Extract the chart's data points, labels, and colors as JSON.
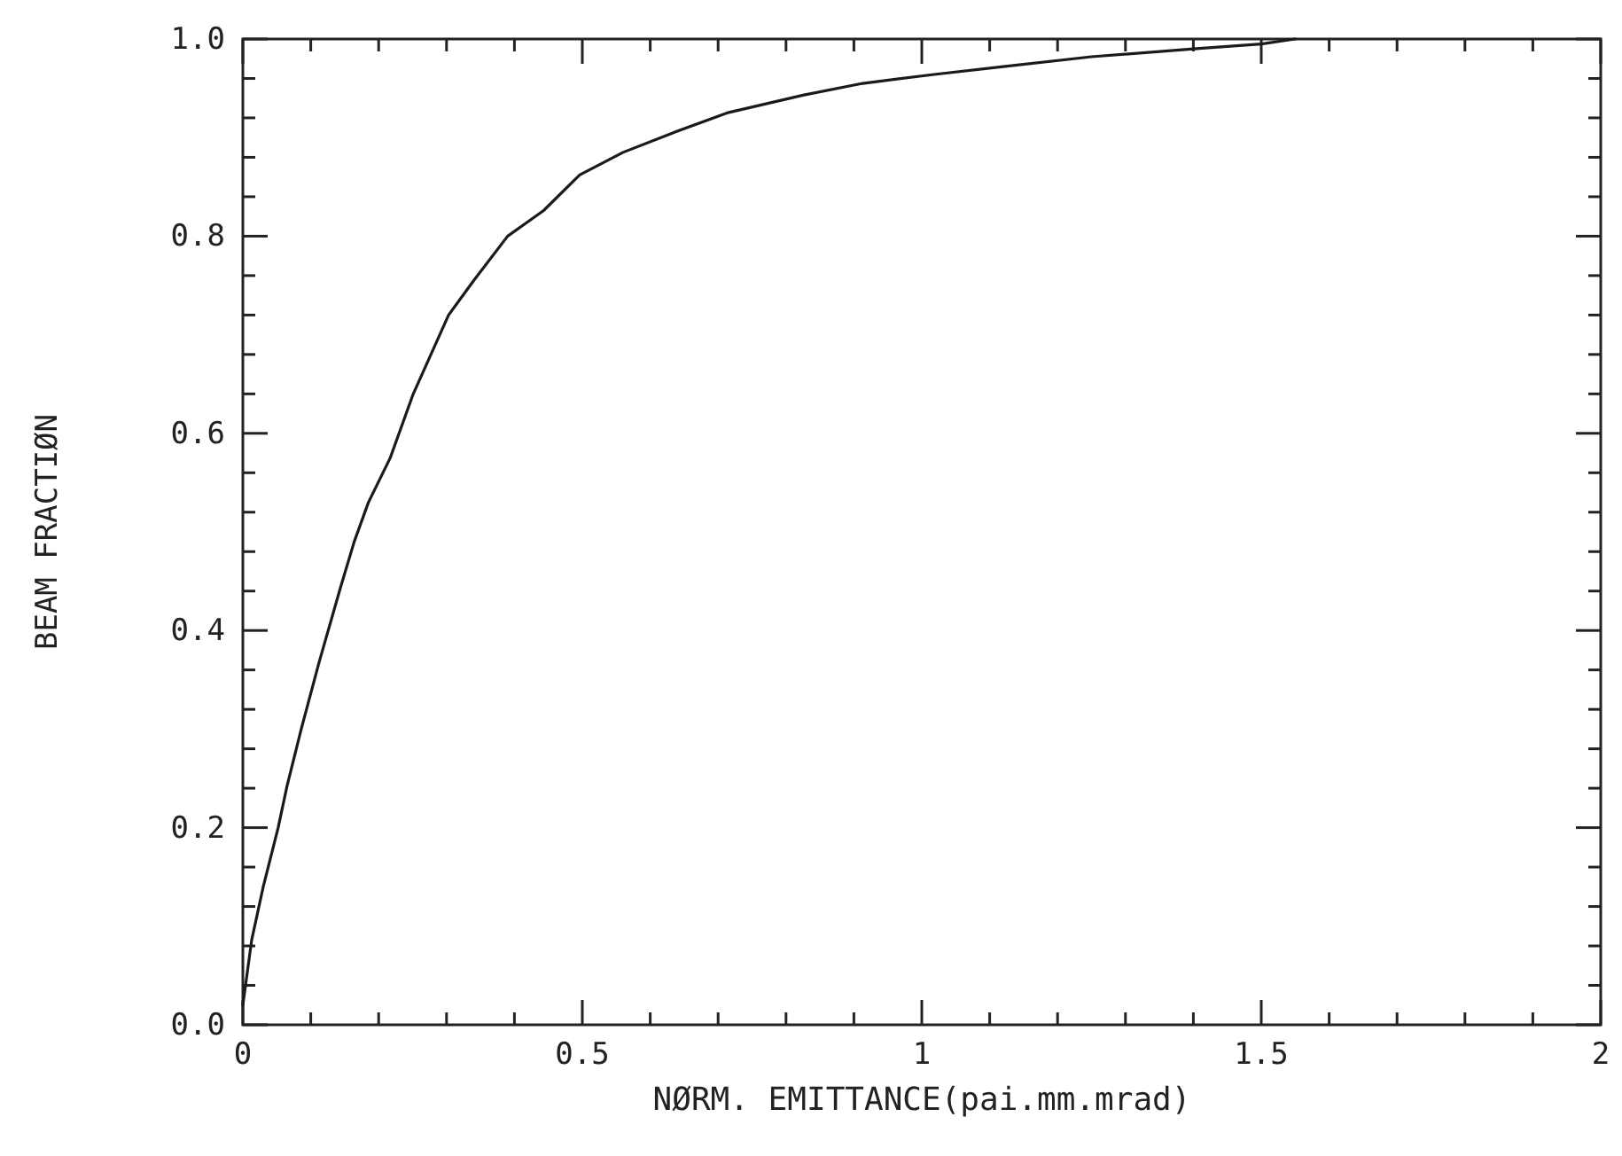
{
  "chart_data": {
    "type": "line",
    "xlabel": "NØRM. EMITTANCE(pai.mm.mrad)",
    "ylabel": "BEAM FRACTIØN",
    "x": [
      0,
      0.013,
      0.03,
      0.052,
      0.065,
      0.086,
      0.112,
      0.144,
      0.164,
      0.185,
      0.217,
      0.251,
      0.303,
      0.34,
      0.39,
      0.443,
      0.496,
      0.56,
      0.634,
      0.713,
      0.825,
      0.913,
      1.018,
      1.12,
      1.25,
      1.4,
      1.5,
      1.55
    ],
    "series": [
      {
        "color": "#1a1a1a",
        "values": [
          0.02,
          0.086,
          0.14,
          0.2,
          0.242,
          0.3,
          0.367,
          0.444,
          0.49,
          0.53,
          0.575,
          0.64,
          0.72,
          0.755,
          0.8,
          0.826,
          0.862,
          0.885,
          0.905,
          0.925,
          0.943,
          0.955,
          0.964,
          0.972,
          0.982,
          0.99,
          0.995,
          1.0
        ]
      }
    ],
    "xlim": [
      0,
      2
    ],
    "ylim": [
      0,
      1
    ],
    "xticks": [
      0,
      {
        "value": 0.1,
        "label": null
      },
      {
        "value": 0.2,
        "label": null
      },
      {
        "value": 0.3,
        "label": null
      },
      {
        "value": 0.4,
        "label": null
      },
      0.5,
      {
        "value": 0.6,
        "label": null
      },
      {
        "value": 0.7,
        "label": null
      },
      {
        "value": 0.8,
        "label": null
      },
      {
        "value": 0.9,
        "label": null
      },
      1,
      {
        "value": 1.1,
        "label": null
      },
      {
        "value": 1.2,
        "label": null
      },
      {
        "value": 1.3,
        "label": null
      },
      {
        "value": 1.4,
        "label": null
      },
      1.5,
      {
        "value": 1.6,
        "label": null
      },
      {
        "value": 1.7,
        "label": null
      },
      {
        "value": 1.8,
        "label": null
      },
      {
        "value": 1.9,
        "label": null
      },
      2
    ],
    "yticks": [
      {
        "value": 0,
        "label": "0.0"
      },
      {
        "value": 0.04,
        "label": null
      },
      {
        "value": 0.08,
        "label": null
      },
      {
        "value": 0.12,
        "label": null
      },
      {
        "value": 0.16,
        "label": null
      },
      {
        "value": 0.2,
        "label": "0.2"
      },
      {
        "value": 0.24,
        "label": null
      },
      {
        "value": 0.28,
        "label": null
      },
      {
        "value": 0.32,
        "label": null
      },
      {
        "value": 0.36,
        "label": null
      },
      {
        "value": 0.4,
        "label": "0.4"
      },
      {
        "value": 0.44,
        "label": null
      },
      {
        "value": 0.48,
        "label": null
      },
      {
        "value": 0.52,
        "label": null
      },
      {
        "value": 0.56,
        "label": null
      },
      {
        "value": 0.6,
        "label": "0.6"
      },
      {
        "value": 0.64,
        "label": null
      },
      {
        "value": 0.68,
        "label": null
      },
      {
        "value": 0.72,
        "label": null
      },
      {
        "value": 0.76,
        "label": null
      },
      {
        "value": 0.8,
        "label": "0.8"
      },
      {
        "value": 0.84,
        "label": null
      },
      {
        "value": 0.88,
        "label": null
      },
      {
        "value": 0.92,
        "label": null
      },
      {
        "value": 0.96,
        "label": null
      },
      {
        "value": 1,
        "label": "1.0"
      }
    ],
    "grid": false,
    "line_style": "solid",
    "marker": "none"
  }
}
